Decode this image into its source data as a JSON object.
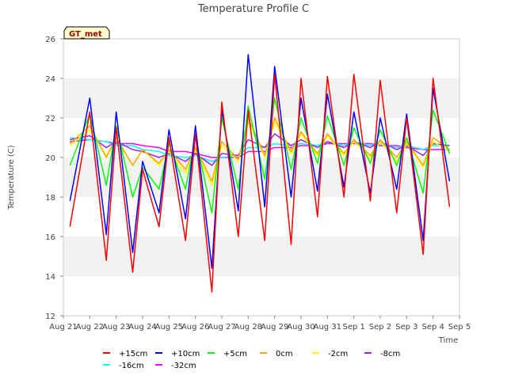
{
  "chart_data": {
    "type": "line",
    "title": "Temperature Profile C",
    "xlabel": "Time",
    "ylabel": "Temperature (C)",
    "annotation": "GT_met",
    "ylim": [
      12,
      26
    ],
    "yticks": [
      12,
      14,
      16,
      18,
      20,
      22,
      24,
      26
    ],
    "x_range_days": [
      0,
      15
    ],
    "xticks": [
      "Aug 21",
      "Aug 22",
      "Aug 23",
      "Aug 24",
      "Aug 25",
      "Aug 26",
      "Aug 27",
      "Aug 28",
      "Aug 29",
      "Aug 30",
      "Aug 31",
      "Sep 1",
      "Sep 2",
      "Sep 3",
      "Sep 4",
      "Sep 5"
    ],
    "grid": "alternating horizontal bands",
    "legend_position": "bottom",
    "x": [
      "Aug 21 06:00",
      "Aug 22 00:00",
      "Aug 22 15:00",
      "Aug 23 00:00",
      "Aug 23 15:00",
      "Aug 24 00:00",
      "Aug 24 15:00",
      "Aug 25 00:00",
      "Aug 25 15:00",
      "Aug 26 00:00",
      "Aug 26 15:00",
      "Aug 27 00:00",
      "Aug 27 15:00",
      "Aug 28 00:00",
      "Aug 28 15:00",
      "Aug 29 00:00",
      "Aug 29 15:00",
      "Aug 30 00:00",
      "Aug 30 15:00",
      "Aug 31 00:00",
      "Aug 31 15:00",
      "Sep 1 00:00",
      "Sep 1 15:00",
      "Sep 2 00:00",
      "Sep 2 15:00",
      "Sep 3 00:00",
      "Sep 3 15:00",
      "Sep 4 00:00",
      "Sep 4 15:00"
    ],
    "series": [
      {
        "name": "+15cm",
        "color": "#ff0000",
        "values": [
          16.5,
          22.3,
          14.8,
          21.5,
          14.2,
          19.4,
          16.5,
          21.0,
          15.8,
          21.2,
          13.2,
          22.8,
          16.0,
          22.4,
          15.8,
          24.2,
          15.6,
          24.0,
          17.0,
          24.1,
          18.0,
          24.2,
          17.8,
          23.9,
          17.2,
          22.0,
          15.1,
          24.0,
          17.5
        ]
      },
      {
        "name": "+10cm",
        "color": "#0000ff",
        "values": [
          17.8,
          23.0,
          16.1,
          22.3,
          15.2,
          19.8,
          17.2,
          21.4,
          16.9,
          21.6,
          14.4,
          22.4,
          17.3,
          25.2,
          17.5,
          24.6,
          18.0,
          23.0,
          18.3,
          23.2,
          18.5,
          22.3,
          18.2,
          22.0,
          18.4,
          22.2,
          15.8,
          23.5,
          18.8
        ]
      },
      {
        "name": "+5cm",
        "color": "#00ff00",
        "values": [
          19.6,
          22.2,
          18.6,
          21.6,
          18.0,
          19.5,
          18.4,
          20.7,
          18.4,
          21.0,
          17.2,
          22.0,
          18.4,
          22.6,
          18.9,
          23.0,
          19.4,
          22.0,
          19.7,
          22.1,
          19.6,
          21.5,
          19.7,
          21.4,
          19.6,
          21.0,
          18.2,
          22.4,
          20.2
        ]
      },
      {
        "name": "0cm",
        "color": "#ffa500",
        "values": [
          20.7,
          21.6,
          20.0,
          21.0,
          19.6,
          20.4,
          19.7,
          20.4,
          19.4,
          20.5,
          18.8,
          20.8,
          19.9,
          22.0,
          20.1,
          22.0,
          20.3,
          21.3,
          20.2,
          21.2,
          20.2,
          20.9,
          20.1,
          20.9,
          20.0,
          20.8,
          19.6,
          21.0,
          20.4
        ]
      },
      {
        "name": "-2cm",
        "color": "#ffff00",
        "values": [
          20.6,
          21.4,
          20.1,
          20.9,
          19.6,
          20.4,
          19.6,
          20.3,
          19.2,
          20.4,
          18.6,
          20.6,
          19.8,
          21.8,
          20.0,
          21.8,
          20.2,
          21.2,
          20.1,
          21.1,
          20.1,
          20.8,
          20.0,
          20.8,
          19.8,
          20.7,
          19.5,
          20.8,
          20.3
        ]
      },
      {
        "name": "-8cm",
        "color": "#a020f0",
        "values": [
          20.9,
          21.1,
          20.5,
          20.8,
          20.4,
          20.3,
          20.0,
          20.2,
          19.8,
          20.2,
          19.6,
          20.2,
          20.1,
          20.9,
          20.5,
          21.2,
          20.6,
          20.9,
          20.5,
          20.8,
          20.5,
          20.8,
          20.5,
          20.8,
          20.4,
          20.6,
          20.1,
          20.7,
          20.6
        ]
      },
      {
        "name": "-16cm",
        "color": "#00ffff",
        "values": [
          21.0,
          20.9,
          20.8,
          20.6,
          20.6,
          20.4,
          20.3,
          20.1,
          20.0,
          20.1,
          19.8,
          20.0,
          20.1,
          20.5,
          20.5,
          20.7,
          20.6,
          20.7,
          20.6,
          20.8,
          20.6,
          20.8,
          20.6,
          20.7,
          20.5,
          20.6,
          20.4,
          20.6,
          20.6
        ]
      },
      {
        "name": "-32cm",
        "color": "#ff00ff",
        "values": [
          20.8,
          20.9,
          20.8,
          20.7,
          20.7,
          20.6,
          20.5,
          20.3,
          20.3,
          20.2,
          20.0,
          20.0,
          20.0,
          20.3,
          20.3,
          20.5,
          20.5,
          20.6,
          20.6,
          20.7,
          20.7,
          20.7,
          20.7,
          20.6,
          20.6,
          20.5,
          20.4,
          20.4,
          20.4
        ]
      }
    ]
  }
}
